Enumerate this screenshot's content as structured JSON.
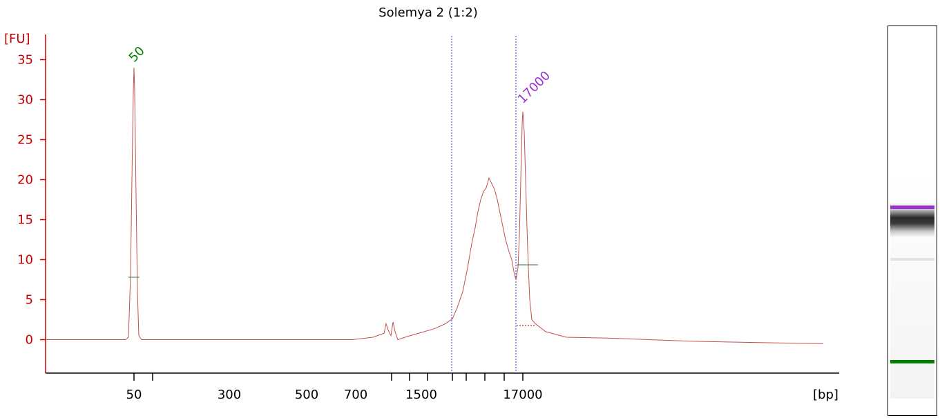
{
  "chart_data": {
    "type": "line",
    "title": "Solemya 2 (1:2)",
    "ylabel": "[FU]",
    "xlabel": "[bp]",
    "ylim": [
      -4,
      38
    ],
    "yticks": [
      0,
      5,
      10,
      15,
      20,
      25,
      30,
      35
    ],
    "xtick_labels": [
      "50",
      "300",
      "500",
      "700",
      "1500",
      "17000"
    ],
    "markers": [
      {
        "label": "50",
        "type": "lower-marker",
        "height": 34.0
      },
      {
        "label": "17000",
        "type": "upper-marker",
        "height": 28.5
      }
    ],
    "colors": {
      "axis": "#cc0000",
      "trace": "#c0504d",
      "lower_marker": "#008000",
      "upper_marker": "#9932cc",
      "region_line": "#3333cc"
    },
    "gel_lane": {
      "bands": [
        {
          "name": "upper-marker-band",
          "color": "#9932cc"
        },
        {
          "name": "lower-marker-band",
          "color": "#008000"
        }
      ]
    }
  }
}
